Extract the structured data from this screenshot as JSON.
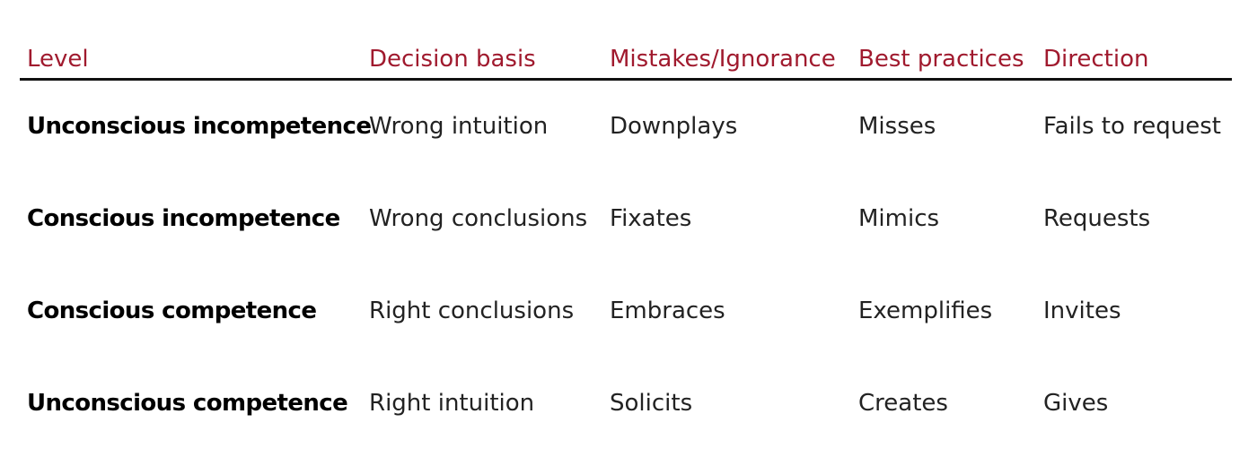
{
  "header": {
    "level": "Level",
    "decision_basis": "Decision basis",
    "mistakes_ignorance": "Mistakes/Ignorance",
    "best_practices": "Best practices",
    "direction": "Direction"
  },
  "rows": [
    {
      "level": "Unconscious incompetence",
      "decision_basis": "Wrong intuition",
      "mistakes_ignorance": "Downplays",
      "best_practices": "Misses",
      "direction": "Fails to request"
    },
    {
      "level": "Conscious incompetence",
      "decision_basis": "Wrong conclusions",
      "mistakes_ignorance": "Fixates",
      "best_practices": "Mimics",
      "direction": "Requests"
    },
    {
      "level": "Conscious competence",
      "decision_basis": "Right conclusions",
      "mistakes_ignorance": "Embraces",
      "best_practices": "Exemplifies",
      "direction": "Invites"
    },
    {
      "level": "Unconscious competence",
      "decision_basis": "Right intuition",
      "mistakes_ignorance": "Solicits",
      "best_practices": "Creates",
      "direction": "Gives"
    }
  ],
  "colors": {
    "header_text": "#a01a2e",
    "rule": "#111111",
    "body_text": "#222222"
  }
}
